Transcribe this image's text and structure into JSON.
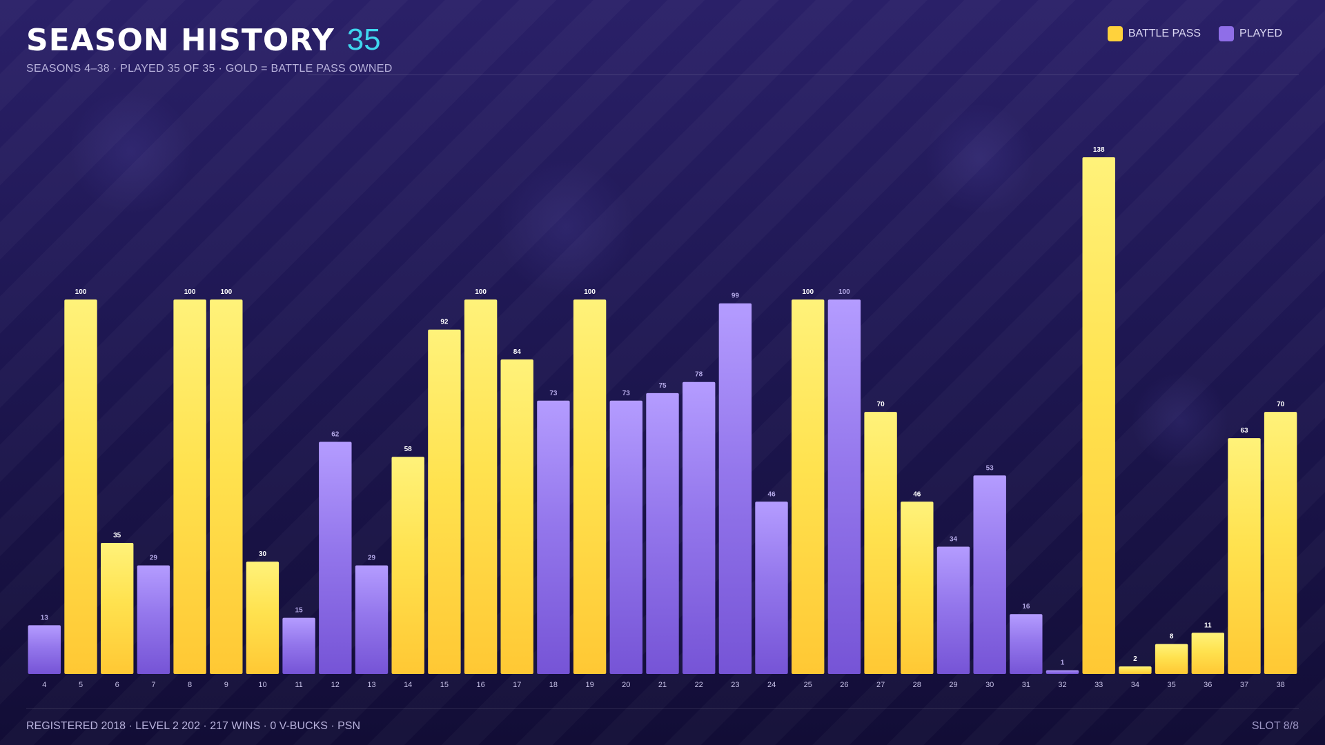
{
  "header": {
    "title": "SEASON HISTORY",
    "count": "35",
    "subtitle": "SEASONS 4–38 · PLAYED 35 OF 35 · GOLD = BATTLE PASS OWNED"
  },
  "legend": {
    "battle_pass": "BATTLE PASS",
    "played": "PLAYED"
  },
  "colors": {
    "battle_pass": "#ffd23c",
    "played": "#8f6ee8",
    "accent": "#3fd7ee"
  },
  "chart_data": {
    "type": "bar",
    "categories": [
      "4",
      "5",
      "6",
      "7",
      "8",
      "9",
      "10",
      "11",
      "12",
      "13",
      "14",
      "15",
      "16",
      "17",
      "18",
      "19",
      "20",
      "21",
      "22",
      "23",
      "24",
      "25",
      "26",
      "27",
      "28",
      "29",
      "30",
      "31",
      "32",
      "33",
      "34",
      "35",
      "36",
      "37",
      "38"
    ],
    "values": [
      13,
      100,
      35,
      29,
      100,
      100,
      30,
      15,
      62,
      29,
      58,
      92,
      100,
      84,
      73,
      100,
      73,
      75,
      78,
      99,
      46,
      100,
      100,
      70,
      46,
      34,
      53,
      16,
      1,
      138,
      2,
      8,
      11,
      63,
      70
    ],
    "battle_pass": [
      false,
      true,
      true,
      false,
      true,
      true,
      true,
      false,
      false,
      false,
      true,
      true,
      true,
      true,
      false,
      true,
      false,
      false,
      false,
      false,
      false,
      true,
      false,
      true,
      true,
      false,
      false,
      false,
      false,
      true,
      true,
      true,
      true,
      true,
      true
    ],
    "ylim": [
      0,
      138
    ],
    "grid": false,
    "legend_position": "top-right"
  },
  "footer": {
    "left": "REGISTERED 2018 · LEVEL 2 202 · 217 WINS · 0 V-BUCKS · PSN",
    "right": "SLOT 8/8"
  }
}
